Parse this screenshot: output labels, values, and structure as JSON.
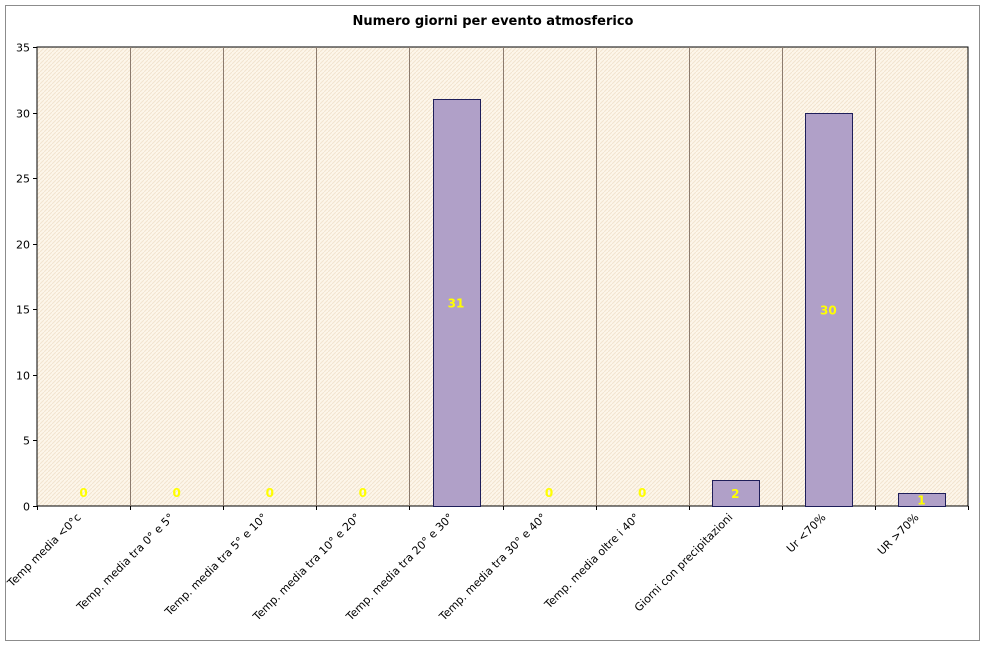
{
  "chart_data": {
    "type": "bar",
    "title": "Numero giorni per evento atmosferico",
    "xlabel": "",
    "ylabel": "",
    "ylim": [
      0,
      35
    ],
    "yticks": [
      0,
      5,
      10,
      15,
      20,
      25,
      30,
      35
    ],
    "grid": "vertical separators between categories",
    "legend": "none",
    "categories": [
      "Temp media <0°c",
      "Temp. media tra 0° e 5°",
      "Temp. media tra 5° e 10°",
      "Temp. media tra 10° e 20°",
      "Temp. media tra 20° e 30°",
      "Temp. media tra 30° e 40°",
      "Temp. media oltre i 40°",
      "Giorni con precipitazioni",
      "Ur <70%",
      "UR >70%"
    ],
    "values": [
      0,
      0,
      0,
      0,
      31,
      0,
      0,
      2,
      30,
      1
    ],
    "data_labels": [
      "0",
      "0",
      "0",
      "0",
      "31",
      "0",
      "0",
      "2",
      "30",
      "1"
    ],
    "colors": {
      "bar_fill": "#b0a0c8",
      "bar_stroke": "#1e1e5a",
      "plot_bg": "#fdf6ea",
      "plot_hatch": "#f2e4cf",
      "separator": "#8c7b6e",
      "data_label": "#ffff00"
    }
  }
}
